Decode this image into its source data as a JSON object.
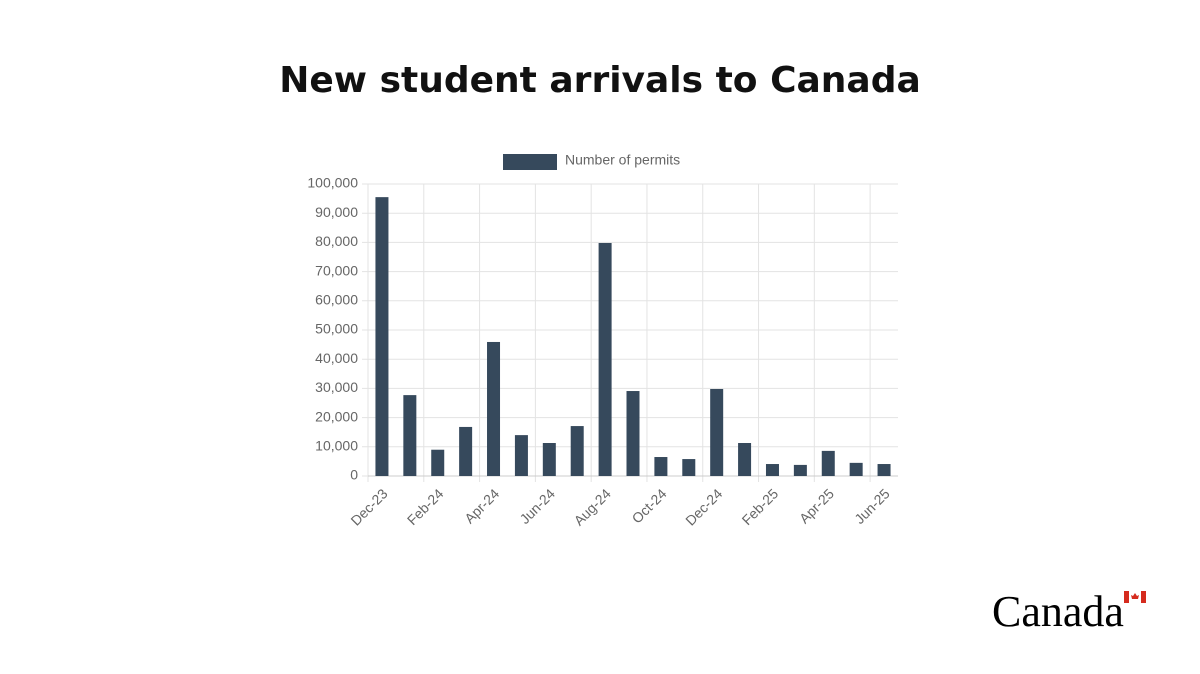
{
  "chart_data": {
    "type": "bar",
    "title": "New student arrivals to Canada",
    "categories": [
      "Dec-23",
      null,
      "Feb-24",
      null,
      "Apr-24",
      null,
      "Jun-24",
      null,
      "Aug-24",
      null,
      "Oct-24",
      null,
      "Dec-24",
      null,
      "Feb-25",
      null,
      "Apr-25",
      null,
      "Jun-25"
    ],
    "series": [
      {
        "name": "Number of permits",
        "color": "#36495c",
        "values": [
          95500,
          27700,
          9000,
          16800,
          45900,
          14000,
          11300,
          17100,
          79800,
          29100,
          6500,
          5800,
          29800,
          11300,
          4100,
          3800,
          8600,
          4500,
          4100
        ]
      }
    ],
    "ylim": [
      0,
      100000
    ],
    "yticks": [
      0,
      {
        "value": 10000,
        "label": "10,000"
      },
      {
        "value": 20000,
        "label": "20,000"
      },
      {
        "value": 30000,
        "label": "30,000"
      },
      {
        "value": 40000,
        "label": "40,000"
      },
      {
        "value": 50000,
        "label": "50,000"
      },
      {
        "value": 60000,
        "label": "60,000"
      },
      {
        "value": 70000,
        "label": "70,000"
      },
      {
        "value": 80000,
        "label": "80,000"
      },
      {
        "value": 90000,
        "label": "90,000"
      },
      {
        "value": 100000,
        "label": "100,000"
      }
    ],
    "grid": true,
    "legend_position": "top"
  },
  "logo_text": "Canada"
}
